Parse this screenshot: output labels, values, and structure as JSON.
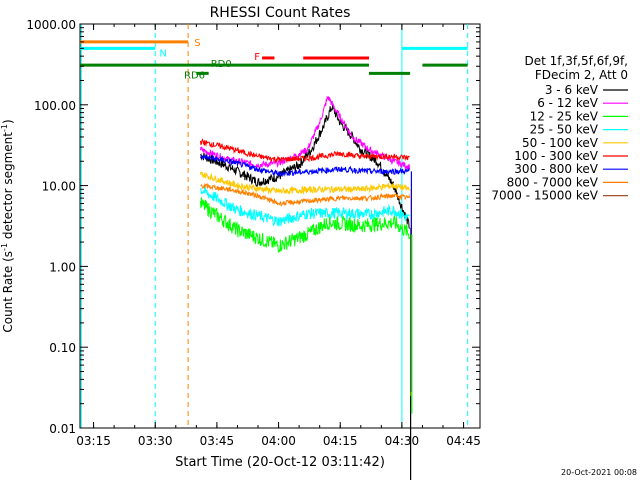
{
  "chart_data": {
    "type": "line",
    "title": "RHESSI Count Rates",
    "xlabel": "Start Time (20-Oct-12 03:11:42)",
    "ylabel_main": "Count Rate (s",
    "ylabel_sup": "-1",
    "ylabel_tail": " detector segment",
    "ylabel_sup2": "-1",
    "ylabel_end": ")",
    "y_scale": "log",
    "ylim": [
      0.01,
      1000
    ],
    "xlim": [
      "03:11:42",
      "04:49:00"
    ],
    "x_ticks": [
      "03:15",
      "03:30",
      "03:45",
      "04:00",
      "04:15",
      "04:30",
      "04:45"
    ],
    "y_ticks": [
      "1000.00",
      "100.00",
      "10.00",
      "1.00",
      "0.10",
      "0.01"
    ],
    "grid": false,
    "legend_placement": "right",
    "legend_header": [
      "Det 1f,3f,5f,6f,9f,",
      "FDecim 2, Att 0"
    ],
    "series": [
      {
        "name": "3 - 6 keV",
        "color": "#000000",
        "samples": [
          [
            "03:41",
            24
          ],
          [
            "03:48",
            17
          ],
          [
            "03:55",
            11
          ],
          [
            "04:00",
            13
          ],
          [
            "04:05",
            18
          ],
          [
            "04:08",
            28
          ],
          [
            "04:11",
            55
          ],
          [
            "04:13",
            95
          ],
          [
            "04:15",
            60
          ],
          [
            "04:18",
            40
          ],
          [
            "04:20",
            28
          ],
          [
            "04:24",
            20
          ],
          [
            "04:28",
            10
          ],
          [
            "04:32",
            3
          ]
        ]
      },
      {
        "name": "6 - 12 keV",
        "color": "#ff00ff",
        "samples": [
          [
            "03:41",
            28
          ],
          [
            "03:48",
            21
          ],
          [
            "03:55",
            18
          ],
          [
            "04:00",
            19
          ],
          [
            "04:03",
            22
          ],
          [
            "04:07",
            28
          ],
          [
            "04:10",
            60
          ],
          [
            "04:12",
            125
          ],
          [
            "04:15",
            70
          ],
          [
            "04:18",
            40
          ],
          [
            "04:22",
            28
          ],
          [
            "04:28",
            20
          ],
          [
            "04:32",
            17
          ]
        ]
      },
      {
        "name": "12 - 25 keV",
        "color": "#00ff00",
        "samples": [
          [
            "03:41",
            6
          ],
          [
            "03:50",
            2.8
          ],
          [
            "04:00",
            1.8
          ],
          [
            "04:07",
            2.5
          ],
          [
            "04:12",
            3.5
          ],
          [
            "04:20",
            3.2
          ],
          [
            "04:28",
            3.5
          ],
          [
            "04:32",
            2.5
          ]
        ]
      },
      {
        "name": "25 - 50 keV",
        "color": "#00ffff",
        "samples": [
          [
            "03:41",
            9
          ],
          [
            "03:50",
            5
          ],
          [
            "04:00",
            3.6
          ],
          [
            "04:07",
            4.5
          ],
          [
            "04:15",
            4.6
          ],
          [
            "04:22",
            4.4
          ],
          [
            "04:28",
            5
          ],
          [
            "04:32",
            3.8
          ]
        ]
      },
      {
        "name": "50 - 100 keV",
        "color": "#ffc800",
        "samples": [
          [
            "03:41",
            14
          ],
          [
            "03:50",
            10
          ],
          [
            "04:00",
            8.5
          ],
          [
            "04:10",
            9
          ],
          [
            "04:20",
            9
          ],
          [
            "04:28",
            10
          ],
          [
            "04:32",
            9
          ]
        ]
      },
      {
        "name": "100 - 300 keV",
        "color": "#ff0000",
        "samples": [
          [
            "03:41",
            35
          ],
          [
            "03:48",
            29
          ],
          [
            "03:55",
            23
          ],
          [
            "04:00",
            21
          ],
          [
            "04:08",
            22
          ],
          [
            "04:15",
            25
          ],
          [
            "04:20",
            23
          ],
          [
            "04:28",
            23
          ],
          [
            "04:32",
            22
          ]
        ]
      },
      {
        "name": "300 - 800 keV",
        "color": "#0000ff",
        "samples": [
          [
            "03:41",
            23
          ],
          [
            "03:48",
            20
          ],
          [
            "03:55",
            16
          ],
          [
            "04:00",
            14
          ],
          [
            "04:08",
            15
          ],
          [
            "04:15",
            16
          ],
          [
            "04:22",
            15
          ],
          [
            "04:28",
            15
          ],
          [
            "04:32",
            15
          ]
        ]
      },
      {
        "name": "800 - 7000 keV",
        "color": "#ff8000",
        "samples": [
          [
            "03:41",
            10
          ],
          [
            "03:48",
            9
          ],
          [
            "03:55",
            7.5
          ],
          [
            "04:00",
            6
          ],
          [
            "04:08",
            6.5
          ],
          [
            "04:15",
            7
          ],
          [
            "04:22",
            7
          ],
          [
            "04:28",
            7.5
          ],
          [
            "04:32",
            7
          ]
        ]
      },
      {
        "name": "7000 - 15000 keV",
        "color": "#a0522d",
        "samples": []
      }
    ],
    "end_drops": [
      {
        "series": "3 - 6 keV",
        "time": "04:32",
        "to": 0.0012
      },
      {
        "series": "50 - 100 keV",
        "time": "04:32",
        "to": 0.025
      },
      {
        "series": "300 - 800 keV",
        "time": "04:32",
        "to": 0.028
      },
      {
        "series": "12 - 25 keV",
        "time": "04:32",
        "to": 0.015
      }
    ],
    "state_bars": [
      {
        "label": "S",
        "color": "#ff8000",
        "y": 600,
        "spans": [
          [
            "03:11:42",
            "03:38"
          ]
        ]
      },
      {
        "label": "N",
        "color": "#00ffff",
        "y": 500,
        "spans": [
          [
            "03:11:42",
            "03:30"
          ],
          [
            "04:30",
            "04:46"
          ]
        ]
      },
      {
        "label": "F",
        "color": "#ff0000",
        "y": 380,
        "spans": [
          [
            "03:56",
            "03:59"
          ],
          [
            "04:06",
            "04:22"
          ]
        ]
      },
      {
        "label": "RD0",
        "color": "#008000",
        "y": 310,
        "spans": [
          [
            "03:11:42",
            "04:22"
          ],
          [
            "04:35",
            "04:46"
          ]
        ]
      },
      {
        "label": "RD6",
        "color": "#008000",
        "y": 245,
        "spans": [
          [
            "03:40",
            "03:43"
          ],
          [
            "04:22",
            "04:32"
          ]
        ]
      }
    ],
    "vertical_markers": [
      {
        "time": "03:12",
        "color": "#00ffff",
        "style": "solid"
      },
      {
        "time": "03:30",
        "color": "#00ffff",
        "style": "dashed"
      },
      {
        "time": "03:38",
        "color": "#ff8000",
        "style": "dashed"
      },
      {
        "time": "04:30",
        "color": "#00ffff",
        "style": "solid"
      },
      {
        "time": "04:46",
        "color": "#00ffff",
        "style": "dashed"
      }
    ]
  },
  "footer": {
    "timestamp": "20-Oct-2021 00:08"
  }
}
